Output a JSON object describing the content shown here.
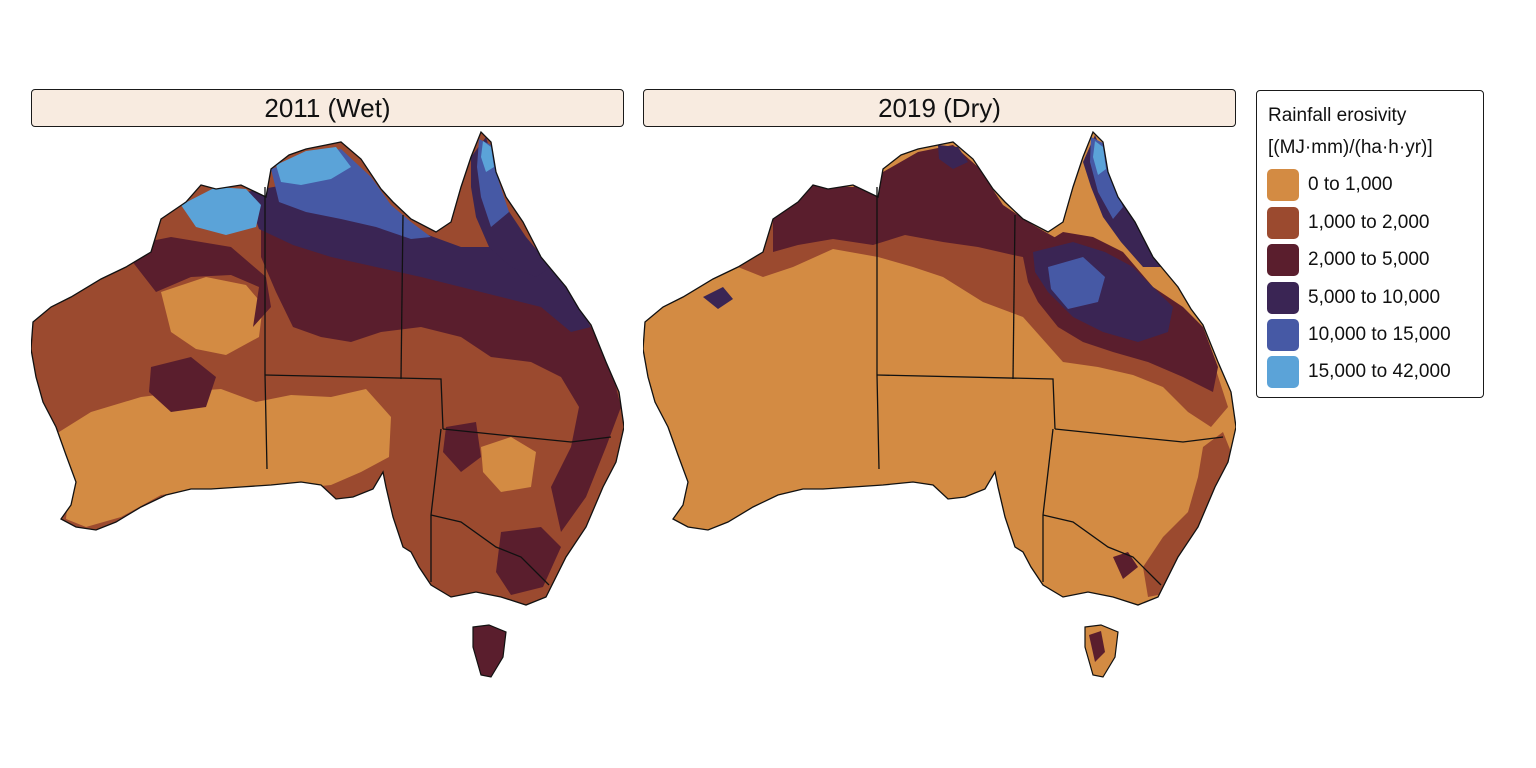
{
  "panels": [
    {
      "title": "2011 (Wet)"
    },
    {
      "title": "2019 (Dry)"
    }
  ],
  "legend": {
    "title_line1": "Rainfall erosivity",
    "title_line2": "[(MJ·mm)/(ha·h·yr)]",
    "items": [
      {
        "label": "0 to 1,000",
        "color": "#d38b43"
      },
      {
        "label": "1,000 to 2,000",
        "color": "#9b4a2f"
      },
      {
        "label": "2,000 to 5,000",
        "color": "#5a1e2d"
      },
      {
        "label": "5,000 to 10,000",
        "color": "#3a2554"
      },
      {
        "label": "10,000 to 15,000",
        "color": "#4659a5"
      },
      {
        "label": "15,000 to 42,000",
        "color": "#5ba3d8"
      }
    ]
  }
}
